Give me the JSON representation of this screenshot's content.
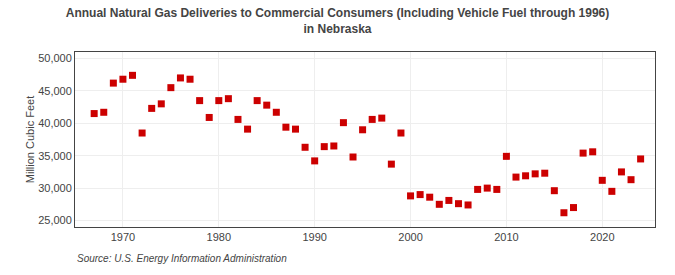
{
  "chart_data": {
    "type": "scatter",
    "title": "Annual Natural Gas Deliveries to Commercial Consumers (Including Vehicle Fuel through 1996)\nin Nebraska",
    "ylabel": "Million Cubic Feet",
    "annotations": [
      "Source: U.S. Energy Information Administration"
    ],
    "color": "#cc0000",
    "marker": "square",
    "grid": true,
    "x": [
      1967,
      1968,
      1969,
      1970,
      1971,
      1972,
      1973,
      1974,
      1975,
      1976,
      1977,
      1978,
      1979,
      1980,
      1981,
      1982,
      1983,
      1984,
      1985,
      1986,
      1987,
      1988,
      1989,
      1990,
      1991,
      1992,
      1993,
      1994,
      1995,
      1996,
      1997,
      1998,
      1999,
      2000,
      2001,
      2002,
      2003,
      2004,
      2005,
      2006,
      2007,
      2008,
      2009,
      2010,
      2011,
      2012,
      2013,
      2014,
      2015,
      2016,
      2017,
      2018,
      2019,
      2020,
      2021,
      2022,
      2023,
      2024
    ],
    "values": [
      41500,
      41700,
      46200,
      46800,
      47400,
      38500,
      42300,
      43000,
      45500,
      47000,
      46800,
      43500,
      40900,
      43500,
      43800,
      40600,
      39100,
      43500,
      42800,
      41700,
      39400,
      39100,
      36300,
      34200,
      36400,
      36500,
      40100,
      34800,
      39000,
      40600,
      40800,
      33700,
      38500,
      28800,
      29000,
      28600,
      27500,
      28100,
      27600,
      27400,
      29800,
      30000,
      29800,
      34900,
      31700,
      31900,
      32200,
      32300,
      29600,
      26200,
      27000,
      35400,
      35600,
      31200,
      29500,
      32500,
      31300,
      34500
    ],
    "xlim": [
      1965,
      2025.5
    ],
    "xticks": [
      1970,
      1980,
      1990,
      2000,
      2010,
      2020
    ],
    "ylim": [
      24000,
      51000
    ],
    "yticks": [
      {
        "value": 25000,
        "label": "25,000"
      },
      {
        "value": 30000,
        "label": "30,000"
      },
      {
        "value": 35000,
        "label": "35,000"
      },
      {
        "value": 40000,
        "label": "40,000"
      },
      {
        "value": 45000,
        "label": "45,000"
      },
      {
        "value": 50000,
        "label": "50,000"
      }
    ]
  }
}
